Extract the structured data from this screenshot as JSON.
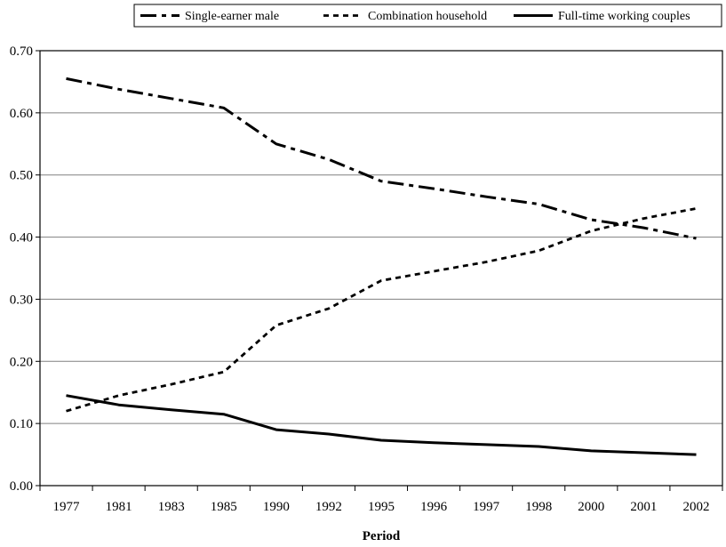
{
  "chart_data": {
    "type": "line",
    "title": "",
    "xlabel": "Period",
    "ylabel": "",
    "ylim": [
      0,
      0.7
    ],
    "yticks": [
      "0.00",
      "0.10",
      "0.20",
      "0.30",
      "0.40",
      "0.50",
      "0.60",
      "0.70"
    ],
    "categories": [
      "1977",
      "1981",
      "1983",
      "1985",
      "1990",
      "1992",
      "1995",
      "1996",
      "1997",
      "1998",
      "2000",
      "2001",
      "2002"
    ],
    "grid": true,
    "legend_position": "top-right",
    "series": [
      {
        "name": "Single-earner male",
        "style": "dash-dot",
        "color": "#000000",
        "values": [
          0.655,
          0.638,
          0.623,
          0.608,
          0.55,
          0.525,
          0.49,
          0.478,
          0.465,
          0.453,
          0.428,
          0.415,
          0.398
        ]
      },
      {
        "name": "Combination household",
        "style": "dotted",
        "color": "#000000",
        "values": [
          0.12,
          0.145,
          0.163,
          0.183,
          0.258,
          0.285,
          0.33,
          0.345,
          0.36,
          0.378,
          0.41,
          0.43,
          0.446
        ]
      },
      {
        "name": "Full-time working couples",
        "style": "solid",
        "color": "#000000",
        "values": [
          0.145,
          0.13,
          0.122,
          0.115,
          0.09,
          0.083,
          0.073,
          0.069,
          0.066,
          0.063,
          0.056,
          0.053,
          0.05
        ]
      }
    ]
  }
}
